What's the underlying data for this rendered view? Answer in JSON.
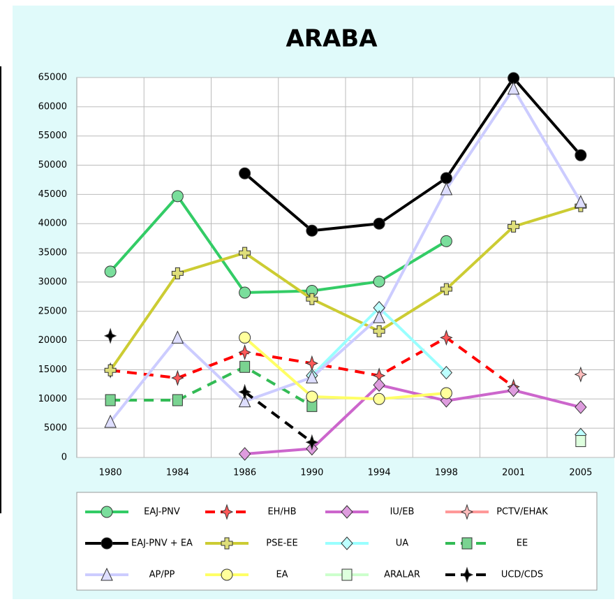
{
  "chart_data": {
    "type": "line",
    "title": "ARABA",
    "categories": [
      "1980",
      "1984",
      "1986",
      "1990",
      "1994",
      "1998",
      "2001",
      "2005"
    ],
    "ylim": [
      0,
      65000
    ],
    "yticks": [
      0,
      5000,
      10000,
      15000,
      20000,
      25000,
      30000,
      35000,
      40000,
      45000,
      50000,
      55000,
      60000,
      65000
    ],
    "grid": true,
    "series": [
      {
        "name": "EAJ-PNV",
        "color": "#33cc66",
        "marker": "circle",
        "dashed": false,
        "values": [
          31800,
          44700,
          28200,
          28500,
          30100,
          37000,
          null,
          null
        ]
      },
      {
        "name": "EH/HB",
        "color": "#ff0000",
        "marker": "star",
        "dashed": true,
        "values": [
          14900,
          13600,
          18000,
          16100,
          14000,
          20500,
          12100,
          null
        ]
      },
      {
        "name": "IU/EB",
        "color": "#cc66cc",
        "marker": "diamond",
        "dashed": false,
        "values": [
          null,
          null,
          600,
          1500,
          12400,
          9700,
          11500,
          8600
        ]
      },
      {
        "name": "PCTV/EHAK",
        "color": "#ff9999",
        "marker": "star",
        "dashed": false,
        "values": [
          null,
          null,
          null,
          null,
          null,
          null,
          null,
          14200
        ]
      },
      {
        "name": "EAJ-PNV + EA",
        "color": "#000000",
        "marker": "circle",
        "dashed": false,
        "values": [
          null,
          null,
          48600,
          38800,
          40000,
          47800,
          64900,
          51700
        ]
      },
      {
        "name": "PSE-EE",
        "color": "#cccc33",
        "marker": "cross",
        "dashed": false,
        "values": [
          14900,
          31500,
          35000,
          27100,
          21600,
          28800,
          39500,
          43000
        ]
      },
      {
        "name": "UA",
        "color": "#99ffff",
        "marker": "diamond",
        "dashed": false,
        "values": [
          null,
          null,
          null,
          14000,
          25600,
          14500,
          null,
          3900
        ]
      },
      {
        "name": "EE",
        "color": "#33bb55",
        "marker": "square",
        "dashed": true,
        "values": [
          9800,
          9800,
          15500,
          8800,
          null,
          null,
          null,
          null
        ]
      },
      {
        "name": "AP/PP",
        "color": "#ccccff",
        "marker": "triangle",
        "dashed": false,
        "values": [
          6100,
          20500,
          9600,
          13700,
          24000,
          45900,
          63100,
          43700
        ]
      },
      {
        "name": "EA",
        "color": "#ffff66",
        "marker": "circle",
        "dashed": false,
        "values": [
          null,
          null,
          20500,
          10400,
          10000,
          11000,
          null,
          null
        ]
      },
      {
        "name": "ARALAR",
        "color": "#ccffcc",
        "marker": "square",
        "dashed": false,
        "values": [
          null,
          null,
          null,
          null,
          null,
          null,
          null,
          2800
        ]
      },
      {
        "name": "UCD/CDS",
        "color": "#000000",
        "marker": "star",
        "dashed": true,
        "values": [
          20800,
          null,
          11200,
          2600,
          null,
          null,
          null,
          null
        ]
      }
    ]
  }
}
